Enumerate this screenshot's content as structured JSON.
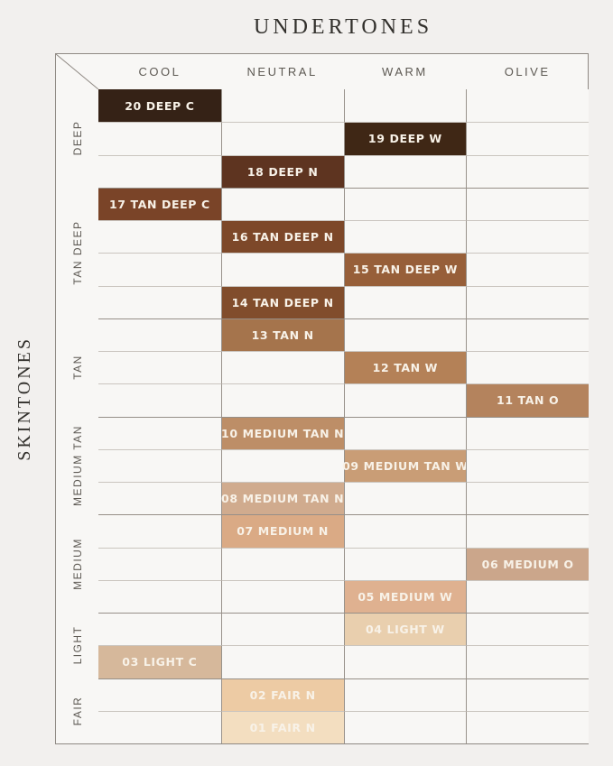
{
  "chart_data": {
    "type": "heatmap",
    "title": "UNDERTONES",
    "row_axis_label": "SKINTONES",
    "legend_position": "none",
    "grid": true,
    "columns": [
      "COOL",
      "NEUTRAL",
      "WARM",
      "OLIVE"
    ],
    "row_groups": [
      {
        "label": "DEEP",
        "rows": 3
      },
      {
        "label": "TAN DEEP",
        "rows": 4
      },
      {
        "label": "TAN",
        "rows": 3
      },
      {
        "label": "MEDIUM TAN",
        "rows": 3
      },
      {
        "label": "MEDIUM",
        "rows": 3
      },
      {
        "label": "LIGHT",
        "rows": 2
      },
      {
        "label": "FAIR",
        "rows": 2
      }
    ],
    "shades": [
      {
        "label": "20 DEEP C",
        "row": 1,
        "column": "COOL",
        "color": "#352216"
      },
      {
        "label": "19 DEEP W",
        "row": 2,
        "column": "WARM",
        "color": "#3f2715"
      },
      {
        "label": "18 DEEP N",
        "row": 3,
        "column": "NEUTRAL",
        "color": "#5e3420"
      },
      {
        "label": "17 TAN DEEP C",
        "row": 4,
        "column": "COOL",
        "color": "#7a4428"
      },
      {
        "label": "16 TAN DEEP N",
        "row": 5,
        "column": "NEUTRAL",
        "color": "#7d4829"
      },
      {
        "label": "15 TAN DEEP W",
        "row": 6,
        "column": "WARM",
        "color": "#975f39"
      },
      {
        "label": "14 TAN DEEP N",
        "row": 7,
        "column": "NEUTRAL",
        "color": "#814d2c"
      },
      {
        "label": "13 TAN N",
        "row": 8,
        "column": "NEUTRAL",
        "color": "#a5744c"
      },
      {
        "label": "12 TAN W",
        "row": 9,
        "column": "WARM",
        "color": "#b48157"
      },
      {
        "label": "11 TAN O",
        "row": 10,
        "column": "OLIVE",
        "color": "#b4835d"
      },
      {
        "label": "10 MEDIUM TAN N",
        "row": 11,
        "column": "NEUTRAL",
        "color": "#bd8e67"
      },
      {
        "label": "09 MEDIUM TAN W",
        "row": 12,
        "column": "WARM",
        "color": "#c99d76"
      },
      {
        "label": "08 MEDIUM TAN N",
        "row": 13,
        "column": "NEUTRAL",
        "color": "#d0ab8e"
      },
      {
        "label": "07 MEDIUM N",
        "row": 14,
        "column": "NEUTRAL",
        "color": "#daaa85"
      },
      {
        "label": "06 MEDIUM O",
        "row": 15,
        "column": "OLIVE",
        "color": "#cba68b"
      },
      {
        "label": "05 MEDIUM W",
        "row": 16,
        "column": "WARM",
        "color": "#dfb190"
      },
      {
        "label": "04 LIGHT W",
        "row": 17,
        "column": "WARM",
        "color": "#e9cfae"
      },
      {
        "label": "03 LIGHT C",
        "row": 18,
        "column": "COOL",
        "color": "#d6b89b"
      },
      {
        "label": "02 FAIR N",
        "row": 19,
        "column": "NEUTRAL",
        "color": "#edcba4"
      },
      {
        "label": "01 FAIR N",
        "row": 20,
        "column": "NEUTRAL",
        "color": "#f3dec0"
      }
    ],
    "colors": {
      "page_background": "#f2f0ee",
      "cell_background": "#f8f7f5",
      "frame_line": "#8f8983",
      "inner_line": "#cac5bf",
      "group_line": "#968f88",
      "heading_text": "#5d5953",
      "title_text": "#32302c",
      "shade_label_text": "#f8f2e8"
    }
  }
}
